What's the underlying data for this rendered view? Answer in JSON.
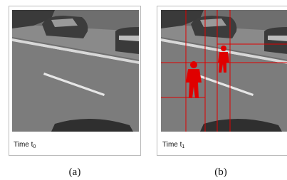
{
  "panels": [
    {
      "caption": {
        "text": "Time t",
        "subscript": "0"
      },
      "label": "(a)"
    },
    {
      "caption": {
        "text": "Time t",
        "subscript": "1"
      },
      "label": "(b)"
    }
  ]
}
